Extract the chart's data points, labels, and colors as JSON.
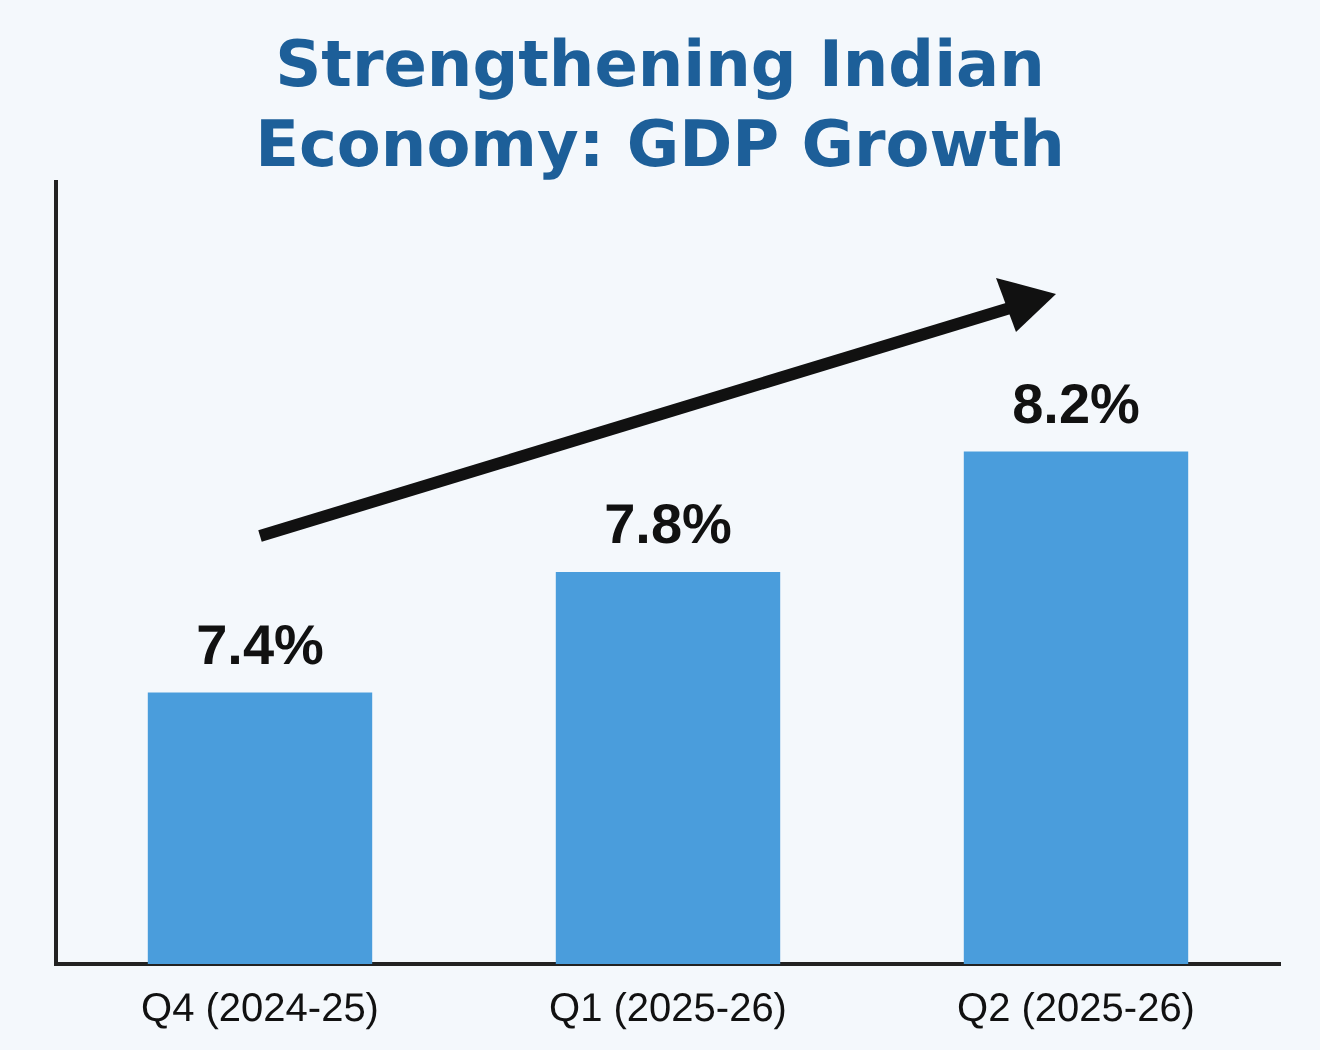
{
  "chart_data": {
    "type": "bar",
    "title": "Strengthening Indian Economy: GDP Growth",
    "categories": [
      "Q4 (2024-25)",
      "Q1 (2025-26)",
      "Q2 (2025-26)"
    ],
    "values": [
      7.4,
      7.8,
      8.2
    ],
    "value_labels": [
      "7.4%",
      "7.8%",
      "8.2%"
    ],
    "color": "#4a9ddc",
    "ylim": [
      6.5,
      9.1
    ],
    "tick_labels": "x"
  }
}
